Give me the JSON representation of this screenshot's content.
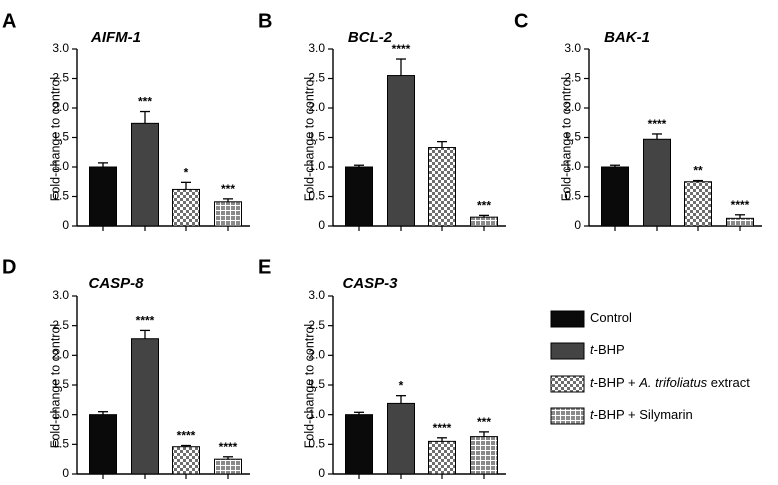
{
  "legend": [
    {
      "label_prefix": "",
      "label_italic": "",
      "label": "Control",
      "pattern": "control"
    },
    {
      "label_prefix": "t",
      "label_italic": "",
      "label": "-BHP",
      "pattern": "tbhp"
    },
    {
      "label_prefix": "t",
      "label_italic": "A. trifoliatus",
      "label": "-BHP + ",
      "label_suffix": " extract",
      "pattern": "checker"
    },
    {
      "label_prefix": "t",
      "label_italic": "",
      "label": "-BHP + Silymarin",
      "pattern": "grid"
    }
  ],
  "colors": {
    "control": "#0a0a0a",
    "tbhp": "#444444",
    "checker_light": "#ffffff",
    "checker_dark": "#6e6e6e",
    "grid_fill": "#8a8a8a",
    "grid_line": "#ffffff",
    "axis": "#000000"
  },
  "chart_data": [
    {
      "type": "bar",
      "panel": "A",
      "title": "AIFM-1",
      "ylabel": "Fold-change to control",
      "ylim": [
        0,
        3.0
      ],
      "yticks": [
        "0",
        "0.5",
        "1.0",
        "1.5",
        "2.0",
        "2.5",
        "3.0"
      ],
      "categories": [
        "Control",
        "t-BHP",
        "t-BHP + A. trifoliatus extract",
        "t-BHP + Silymarin"
      ],
      "values": [
        1.0,
        1.74,
        0.62,
        0.41
      ],
      "errors": [
        0.07,
        0.2,
        0.12,
        0.05
      ],
      "significance": [
        "",
        "***",
        "*",
        "***"
      ]
    },
    {
      "type": "bar",
      "panel": "B",
      "title": "BCL-2",
      "ylabel": "Fold-change to control",
      "ylim": [
        0,
        3.0
      ],
      "yticks": [
        "0",
        "0.5",
        "1.0",
        "1.5",
        "2.0",
        "2.5",
        "3.0"
      ],
      "categories": [
        "Control",
        "t-BHP",
        "t-BHP + A. trifoliatus extract",
        "t-BHP + Silymarin"
      ],
      "values": [
        1.0,
        2.55,
        1.33,
        0.15
      ],
      "errors": [
        0.03,
        0.28,
        0.1,
        0.03
      ],
      "significance": [
        "",
        "****",
        "",
        "***"
      ]
    },
    {
      "type": "bar",
      "panel": "C",
      "title": "BAK-1",
      "ylabel": "Fold-change to control",
      "ylim": [
        0,
        3.0
      ],
      "yticks": [
        "0",
        "0.5",
        "1.0",
        "1.5",
        "2.0",
        "2.5",
        "3.0"
      ],
      "categories": [
        "Control",
        "t-BHP",
        "t-BHP + A. trifoliatus extract",
        "t-BHP + Silymarin"
      ],
      "values": [
        1.0,
        1.47,
        0.75,
        0.13
      ],
      "errors": [
        0.03,
        0.09,
        0.02,
        0.06
      ],
      "significance": [
        "",
        "****",
        "**",
        "****"
      ]
    },
    {
      "type": "bar",
      "panel": "D",
      "title": "CASP-8",
      "ylabel": "Fold-change to control",
      "ylim": [
        0,
        3.0
      ],
      "yticks": [
        "0",
        "0.5",
        "1.0",
        "1.5",
        "2.0",
        "2.5",
        "3.0"
      ],
      "categories": [
        "Control",
        "t-BHP",
        "t-BHP + A. trifoliatus extract",
        "t-BHP + Silymarin"
      ],
      "values": [
        1.0,
        2.28,
        0.46,
        0.25
      ],
      "errors": [
        0.05,
        0.14,
        0.02,
        0.04
      ],
      "significance": [
        "",
        "****",
        "****",
        "****"
      ]
    },
    {
      "type": "bar",
      "panel": "E",
      "title": "CASP-3",
      "ylabel": "Fold-change to control",
      "ylim": [
        0,
        3.0
      ],
      "yticks": [
        "0",
        "0.5",
        "1.0",
        "1.5",
        "2.0",
        "2.5",
        "3.0"
      ],
      "categories": [
        "Control",
        "t-BHP",
        "t-BHP + A. trifoliatus extract",
        "t-BHP + Silymarin"
      ],
      "values": [
        1.0,
        1.19,
        0.55,
        0.63
      ],
      "errors": [
        0.04,
        0.13,
        0.06,
        0.08
      ],
      "significance": [
        "",
        "*",
        "****",
        "***"
      ]
    }
  ]
}
